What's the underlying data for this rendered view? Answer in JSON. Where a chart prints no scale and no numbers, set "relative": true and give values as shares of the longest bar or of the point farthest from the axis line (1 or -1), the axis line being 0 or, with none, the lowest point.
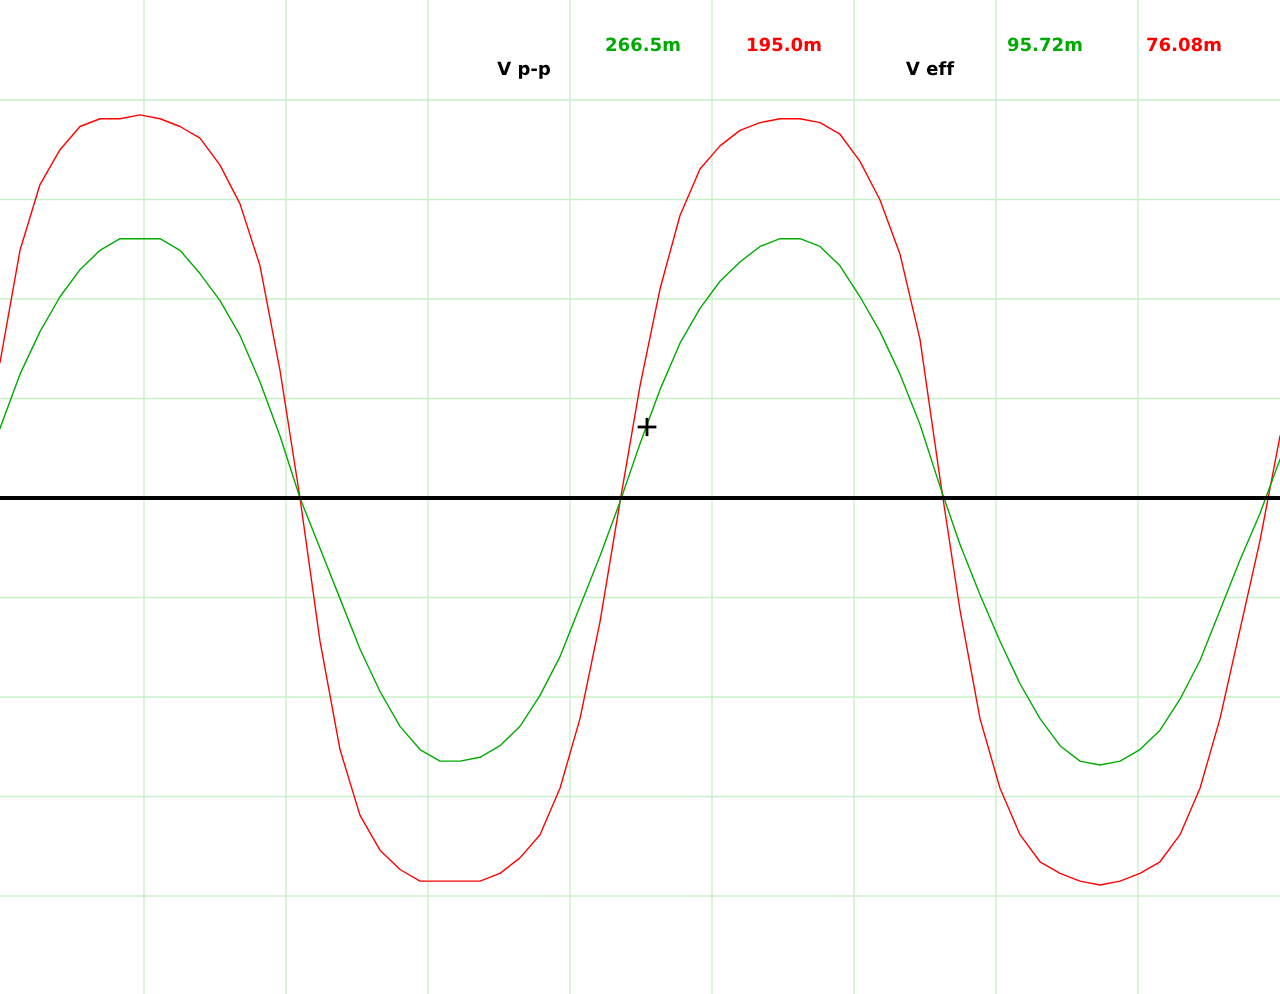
{
  "chart_data": {
    "type": "line",
    "relative": true,
    "grid": true,
    "legend": false,
    "marker": "none",
    "line_style": "solid",
    "categories": [
      null,
      null,
      null,
      null,
      null,
      null,
      null,
      null,
      null,
      null,
      null,
      null,
      null,
      null,
      null,
      null,
      null,
      null,
      null,
      null,
      null,
      null,
      null,
      null,
      null,
      null,
      null,
      null,
      null,
      null,
      null,
      null,
      null,
      null,
      null,
      null,
      null,
      null,
      null,
      null,
      null,
      null,
      null,
      null,
      null,
      null,
      null,
      null,
      null,
      null,
      null,
      null,
      null,
      null,
      null,
      null,
      null,
      null,
      null,
      null,
      null,
      null,
      null,
      null,
      null
    ],
    "series": [
      {
        "color": "#ff0000",
        "values": [
          0.35,
          0.64,
          0.81,
          0.9,
          0.96,
          0.98,
          0.98,
          0.99,
          0.98,
          0.96,
          0.93,
          0.86,
          0.76,
          0.6,
          0.33,
          0,
          -0.37,
          -0.65,
          -0.82,
          -0.91,
          -0.96,
          -0.99,
          -0.99,
          -0.99,
          -0.99,
          -0.97,
          -0.93,
          -0.87,
          -0.75,
          -0.57,
          -0.32,
          -0.01,
          0.29,
          0.54,
          0.73,
          0.85,
          0.91,
          0.95,
          0.97,
          0.98,
          0.98,
          0.97,
          0.94,
          0.87,
          0.77,
          0.63,
          0.41,
          0.05,
          -0.29,
          -0.57,
          -0.75,
          -0.87,
          -0.94,
          -0.97,
          -0.99,
          -1,
          -0.99,
          -0.97,
          -0.94,
          -0.87,
          -0.75,
          -0.57,
          -0.34,
          -0.11,
          0.16
        ]
      },
      {
        "color": "#00aa00",
        "values": [
          0.18,
          0.32,
          0.43,
          0.52,
          0.59,
          0.64,
          0.67,
          0.67,
          0.67,
          0.64,
          0.58,
          0.51,
          0.42,
          0.3,
          0.16,
          0,
          -0.13,
          -0.26,
          -0.39,
          -0.5,
          -0.59,
          -0.65,
          -0.68,
          -0.68,
          -0.67,
          -0.64,
          -0.59,
          -0.51,
          -0.41,
          -0.28,
          -0.15,
          -0.01,
          0.14,
          0.28,
          0.4,
          0.49,
          0.56,
          0.61,
          0.65,
          0.67,
          0.67,
          0.65,
          0.6,
          0.52,
          0.43,
          0.32,
          0.19,
          0.03,
          -0.12,
          -0.25,
          -0.37,
          -0.48,
          -0.57,
          -0.64,
          -0.68,
          -0.69,
          -0.68,
          -0.65,
          -0.6,
          -0.52,
          -0.42,
          -0.29,
          -0.16,
          -0.04,
          0.1
        ]
      }
    ],
    "ref_lines": [
      {
        "axis": "y",
        "value": 0,
        "color": "#000000"
      }
    ],
    "annotations": [
      "V p-p",
      "266.5m",
      "195.0m",
      "V eff",
      "95.72m",
      "76.08m"
    ]
  }
}
